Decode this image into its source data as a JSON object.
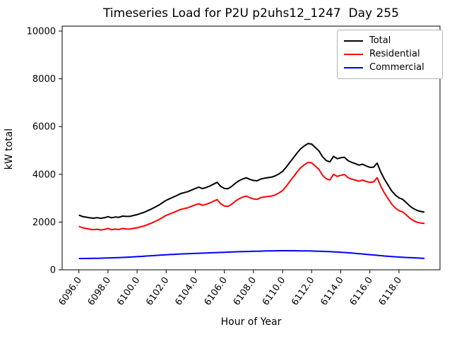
{
  "chart_data": {
    "type": "line",
    "title": "Timeseries Load for P2U p2uhs12_1247  Day 255",
    "xlabel": "Hour of Year",
    "ylabel": "kW total",
    "xlim": [
      6094.85,
      6120.82
    ],
    "ylim": [
      0,
      10207
    ],
    "yticks": [
      0,
      2000,
      4000,
      6000,
      8000,
      10000
    ],
    "ytick_labels": [
      "0",
      "2000",
      "4000",
      "6000",
      "8000",
      "10000"
    ],
    "xticks": [
      6096,
      6098,
      6100,
      6102,
      6104,
      6106,
      6108,
      6110,
      6112,
      6114,
      6116,
      6118
    ],
    "xtick_labels": [
      "6096.0",
      "6098.0",
      "6100.0",
      "6102.0",
      "6104.0",
      "6106.0",
      "6108.0",
      "6110.0",
      "6112.0",
      "6114.0",
      "6116.0",
      "6118.0"
    ],
    "grid": false,
    "legend_position": "upper right",
    "x": [
      6096,
      6096.25,
      6096.5,
      6096.75,
      6097,
      6097.25,
      6097.5,
      6097.75,
      6098,
      6098.25,
      6098.5,
      6098.75,
      6099,
      6099.25,
      6099.5,
      6099.75,
      6100,
      6100.25,
      6100.5,
      6100.75,
      6101,
      6101.25,
      6101.5,
      6101.75,
      6102,
      6102.25,
      6102.5,
      6102.75,
      6103,
      6103.25,
      6103.5,
      6103.75,
      6104,
      6104.25,
      6104.5,
      6104.75,
      6105,
      6105.25,
      6105.5,
      6105.75,
      6106,
      6106.25,
      6106.5,
      6106.75,
      6107,
      6107.25,
      6107.5,
      6107.75,
      6108,
      6108.25,
      6108.5,
      6108.75,
      6109,
      6109.25,
      6109.5,
      6109.75,
      6110,
      6110.25,
      6110.5,
      6110.75,
      6111,
      6111.25,
      6111.5,
      6111.75,
      6112,
      6112.25,
      6112.5,
      6112.75,
      6113,
      6113.25,
      6113.5,
      6113.75,
      6114,
      6114.25,
      6114.5,
      6114.75,
      6115,
      6115.25,
      6115.5,
      6115.75,
      6116,
      6116.25,
      6116.5,
      6116.75,
      6117,
      6117.25,
      6117.5,
      6117.75,
      6118,
      6118.25,
      6118.5,
      6118.75,
      6119,
      6119.25,
      6119.5,
      6119.75
    ],
    "series": [
      {
        "name": "Total",
        "color": "#000000",
        "values": [
          2290,
          2232,
          2204,
          2177,
          2160,
          2183,
          2156,
          2180,
          2225,
          2180,
          2211,
          2197,
          2249,
          2236,
          2238,
          2276,
          2310,
          2360,
          2410,
          2480,
          2550,
          2630,
          2710,
          2810,
          2910,
          2978,
          3046,
          3119,
          3192,
          3233,
          3274,
          3340,
          3406,
          3462,
          3398,
          3449,
          3510,
          3586,
          3662,
          3498,
          3404,
          3395,
          3491,
          3622,
          3728,
          3802,
          3856,
          3790,
          3744,
          3728,
          3802,
          3836,
          3860,
          3883,
          3936,
          4018,
          4120,
          4300,
          4499,
          4698,
          4896,
          5074,
          5192,
          5290,
          5266,
          5122,
          4978,
          4732,
          4576,
          4520,
          4752,
          4654,
          4694,
          4714,
          4572,
          4500,
          4448,
          4386,
          4422,
          4348,
          4294,
          4300,
          4466,
          4092,
          3798,
          3546,
          3304,
          3133,
          3013,
          2954,
          2816,
          2669,
          2563,
          2485,
          2445,
          2415
        ]
      },
      {
        "name": "Residential",
        "color": "#ff0000",
        "values": [
          1820,
          1760,
          1730,
          1700,
          1680,
          1700,
          1670,
          1690,
          1730,
          1680,
          1705,
          1685,
          1730,
          1710,
          1705,
          1735,
          1760,
          1800,
          1840,
          1900,
          1960,
          2030,
          2100,
          2190,
          2280,
          2340,
          2400,
          2465,
          2530,
          2565,
          2600,
          2660,
          2720,
          2770,
          2700,
          2745,
          2800,
          2870,
          2940,
          2770,
          2670,
          2655,
          2745,
          2870,
          2970,
          3040,
          3090,
          3020,
          2970,
          2950,
          3020,
          3050,
          3070,
          3090,
          3140,
          3220,
          3320,
          3500,
          3700,
          3900,
          4100,
          4280,
          4400,
          4500,
          4480,
          4340,
          4200,
          3960,
          3810,
          3760,
          4000,
          3910,
          3960,
          3990,
          3860,
          3800,
          3760,
          3710,
          3760,
          3700,
          3660,
          3680,
          3860,
          3500,
          3220,
          2980,
          2750,
          2590,
          2480,
          2430,
          2300,
          2160,
          2060,
          1990,
          1960,
          1940
        ]
      },
      {
        "name": "Commercial",
        "color": "#0000ff",
        "values": [
          470,
          472,
          474,
          477,
          480,
          483,
          486,
          490,
          495,
          500,
          506,
          512,
          519,
          526,
          533,
          541,
          550,
          560,
          570,
          580,
          590,
          600,
          610,
          620,
          630,
          638,
          646,
          654,
          662,
          668,
          674,
          680,
          686,
          692,
          698,
          704,
          710,
          716,
          722,
          728,
          734,
          740,
          746,
          752,
          758,
          762,
          766,
          770,
          774,
          778,
          782,
          786,
          790,
          793,
          796,
          798,
          800,
          800,
          799,
          798,
          796,
          794,
          792,
          790,
          786,
          782,
          778,
          772,
          766,
          760,
          752,
          744,
          734,
          724,
          712,
          700,
          688,
          676,
          662,
          648,
          634,
          620,
          606,
          592,
          578,
          566,
          554,
          543,
          533,
          524,
          516,
          509,
          503,
          495,
          485,
          475
        ]
      }
    ]
  }
}
